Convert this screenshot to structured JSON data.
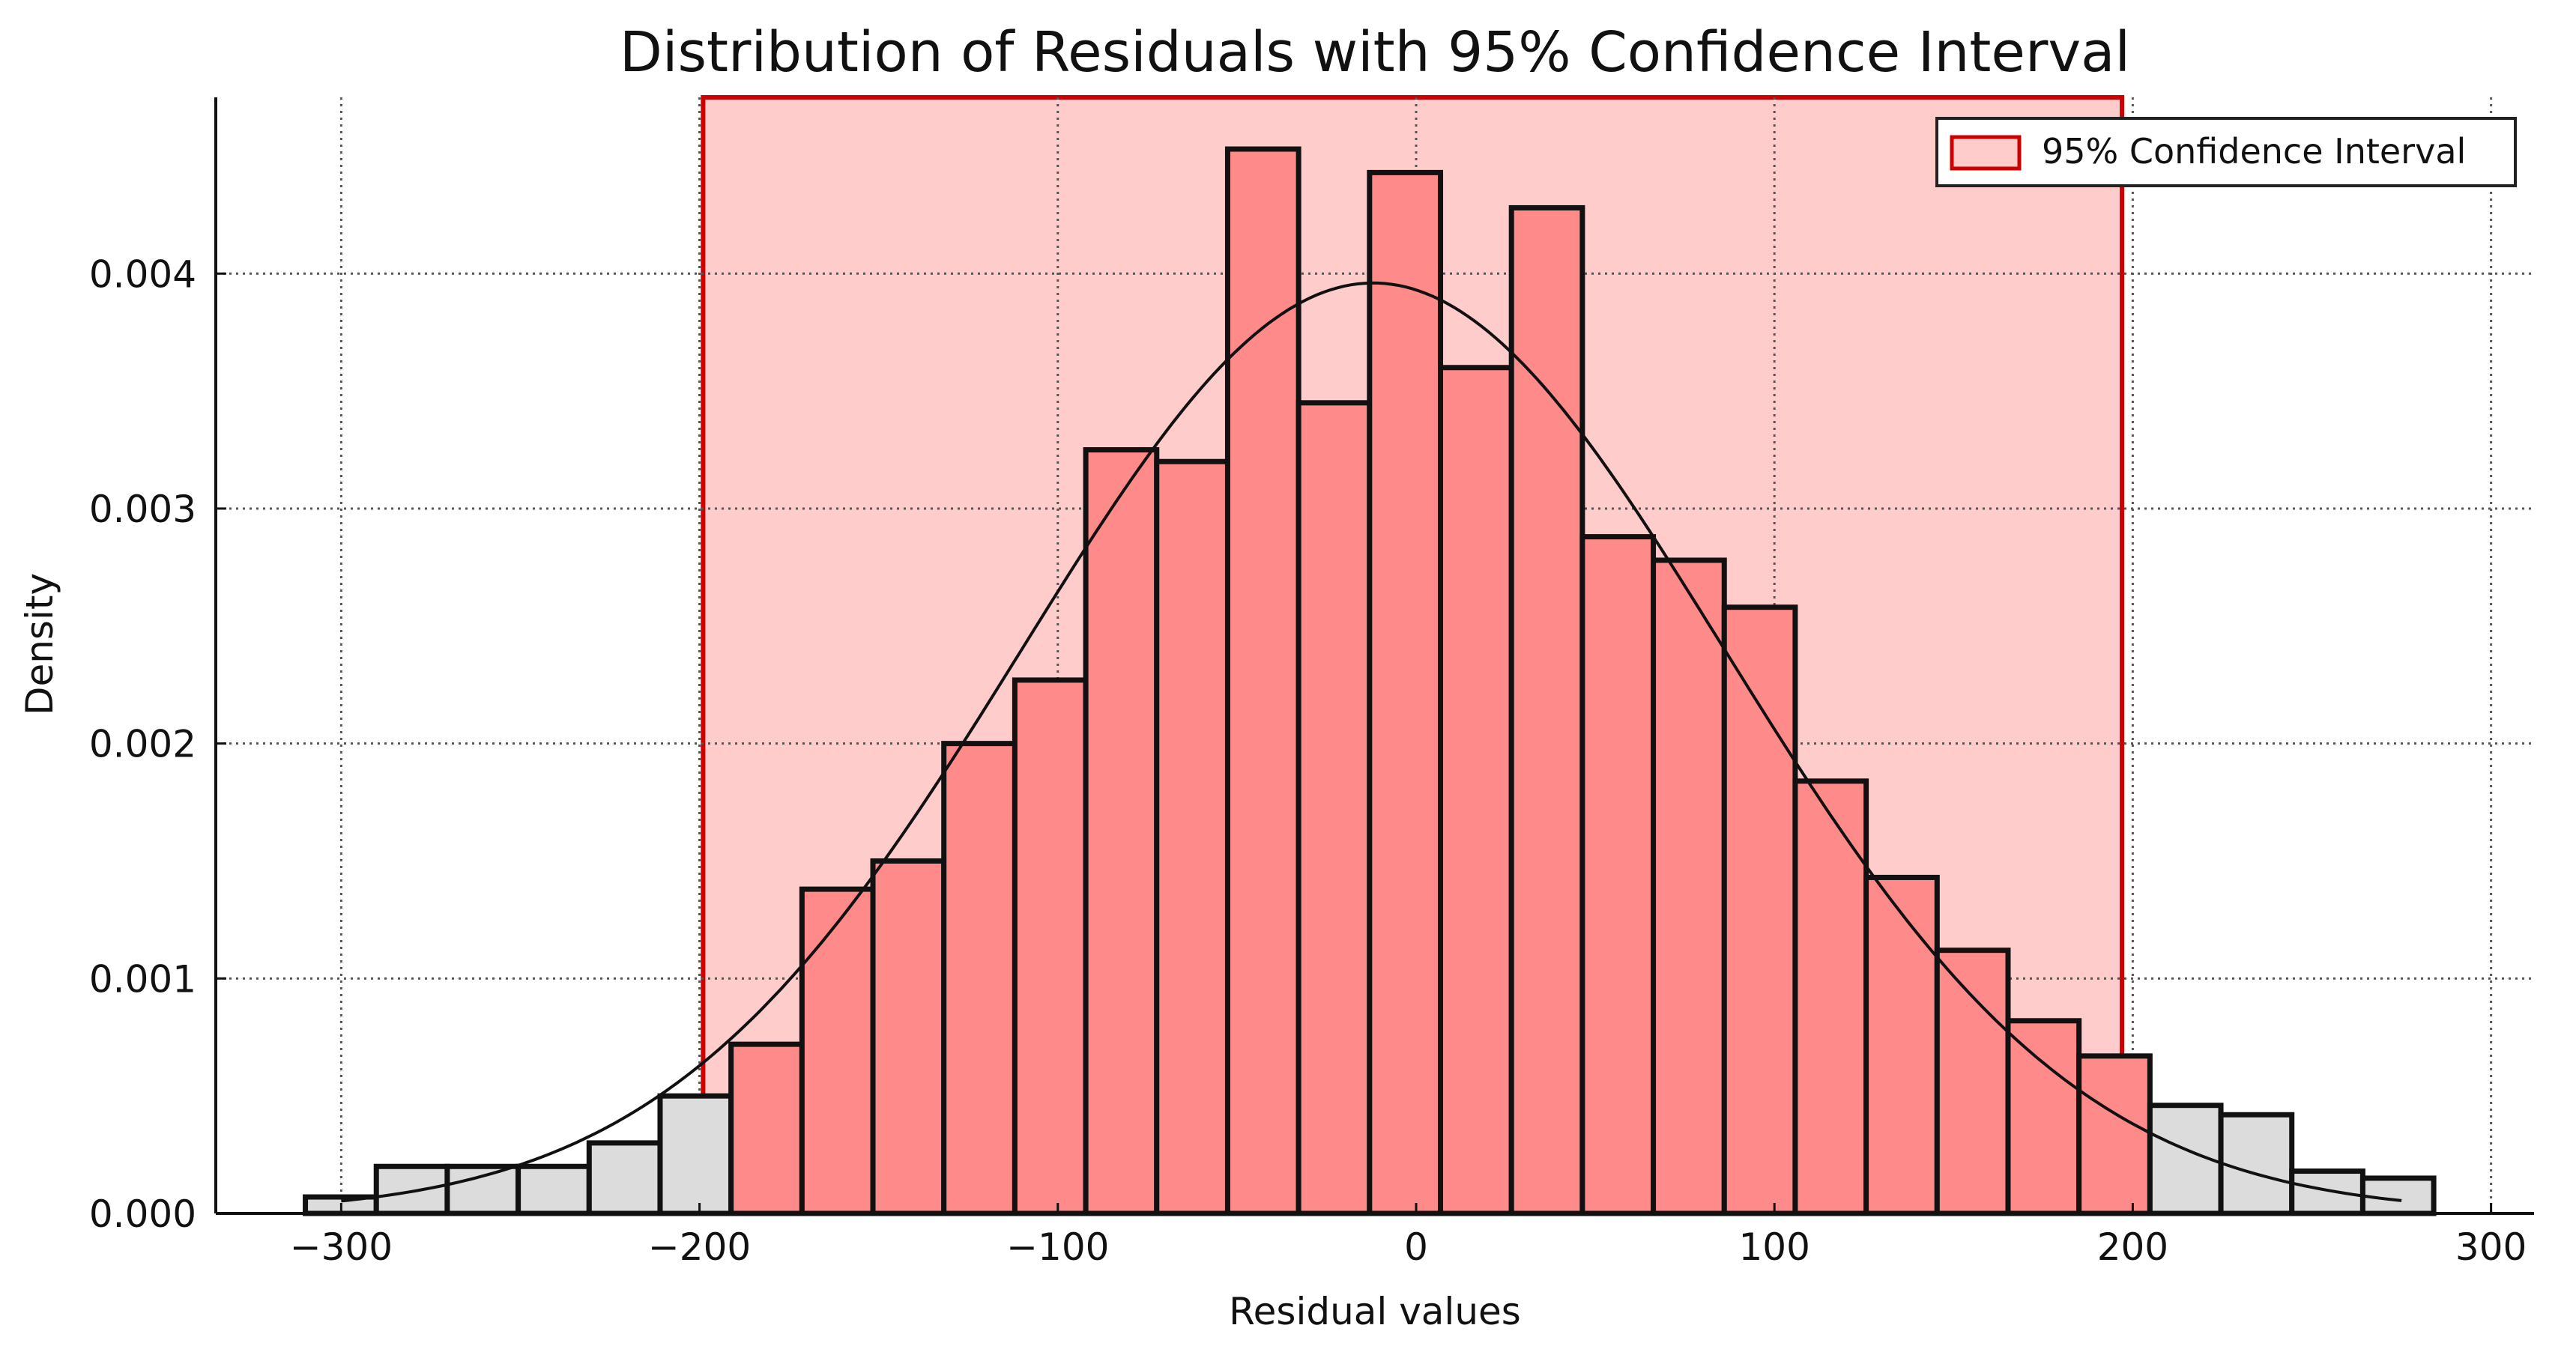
{
  "chart_data": {
    "type": "bar",
    "title": "Distribution of Residuals with 95% Confidence Interval",
    "xlabel": "Residual values",
    "ylabel": "Density",
    "xlim": [
      -335,
      312
    ],
    "ylim": [
      0,
      0.00475
    ],
    "xticks": [
      -300,
      -200,
      -100,
      0,
      100,
      200,
      300
    ],
    "xtick_labels": [
      "−300",
      "−200",
      "−100",
      "0",
      "100",
      "200",
      "300"
    ],
    "yticks": [
      0.0,
      0.001,
      0.002,
      0.003,
      0.004
    ],
    "ytick_labels": [
      "0.000",
      "0.001",
      "0.002",
      "0.003",
      "0.004"
    ],
    "grid": true,
    "legend_position": "top-right",
    "legend": [
      {
        "label": "95% Confidence Interval",
        "color": "#ffcccc",
        "edge": "#cc0000"
      }
    ],
    "confidence_interval": {
      "low": -199,
      "high": 197,
      "fill": "#ffcccc",
      "edge": "#cc0000"
    },
    "colors": {
      "inside_bar": "#ff8a8a",
      "outside_bar": "#dcdcdc",
      "bar_edge": "#111111",
      "curve": "#111111",
      "grid": "#555555"
    },
    "bins": {
      "start": -310,
      "width": 19.8,
      "values": [
        7e-05,
        0.0002,
        0.0002,
        0.0002,
        0.0003,
        0.0005,
        0.00072,
        0.00138,
        0.0015,
        0.002,
        0.00227,
        0.00325,
        0.0032,
        0.00453,
        0.00345,
        0.00443,
        0.0036,
        0.00428,
        0.00288,
        0.00278,
        0.00258,
        0.00184,
        0.00143,
        0.00112,
        0.00082,
        0.00067,
        0.00046,
        0.00042,
        0.00018,
        0.00015
      ]
    },
    "fit_curve": {
      "type": "normal",
      "mean": -12,
      "peak_density": 0.00396,
      "std": 98
    }
  }
}
